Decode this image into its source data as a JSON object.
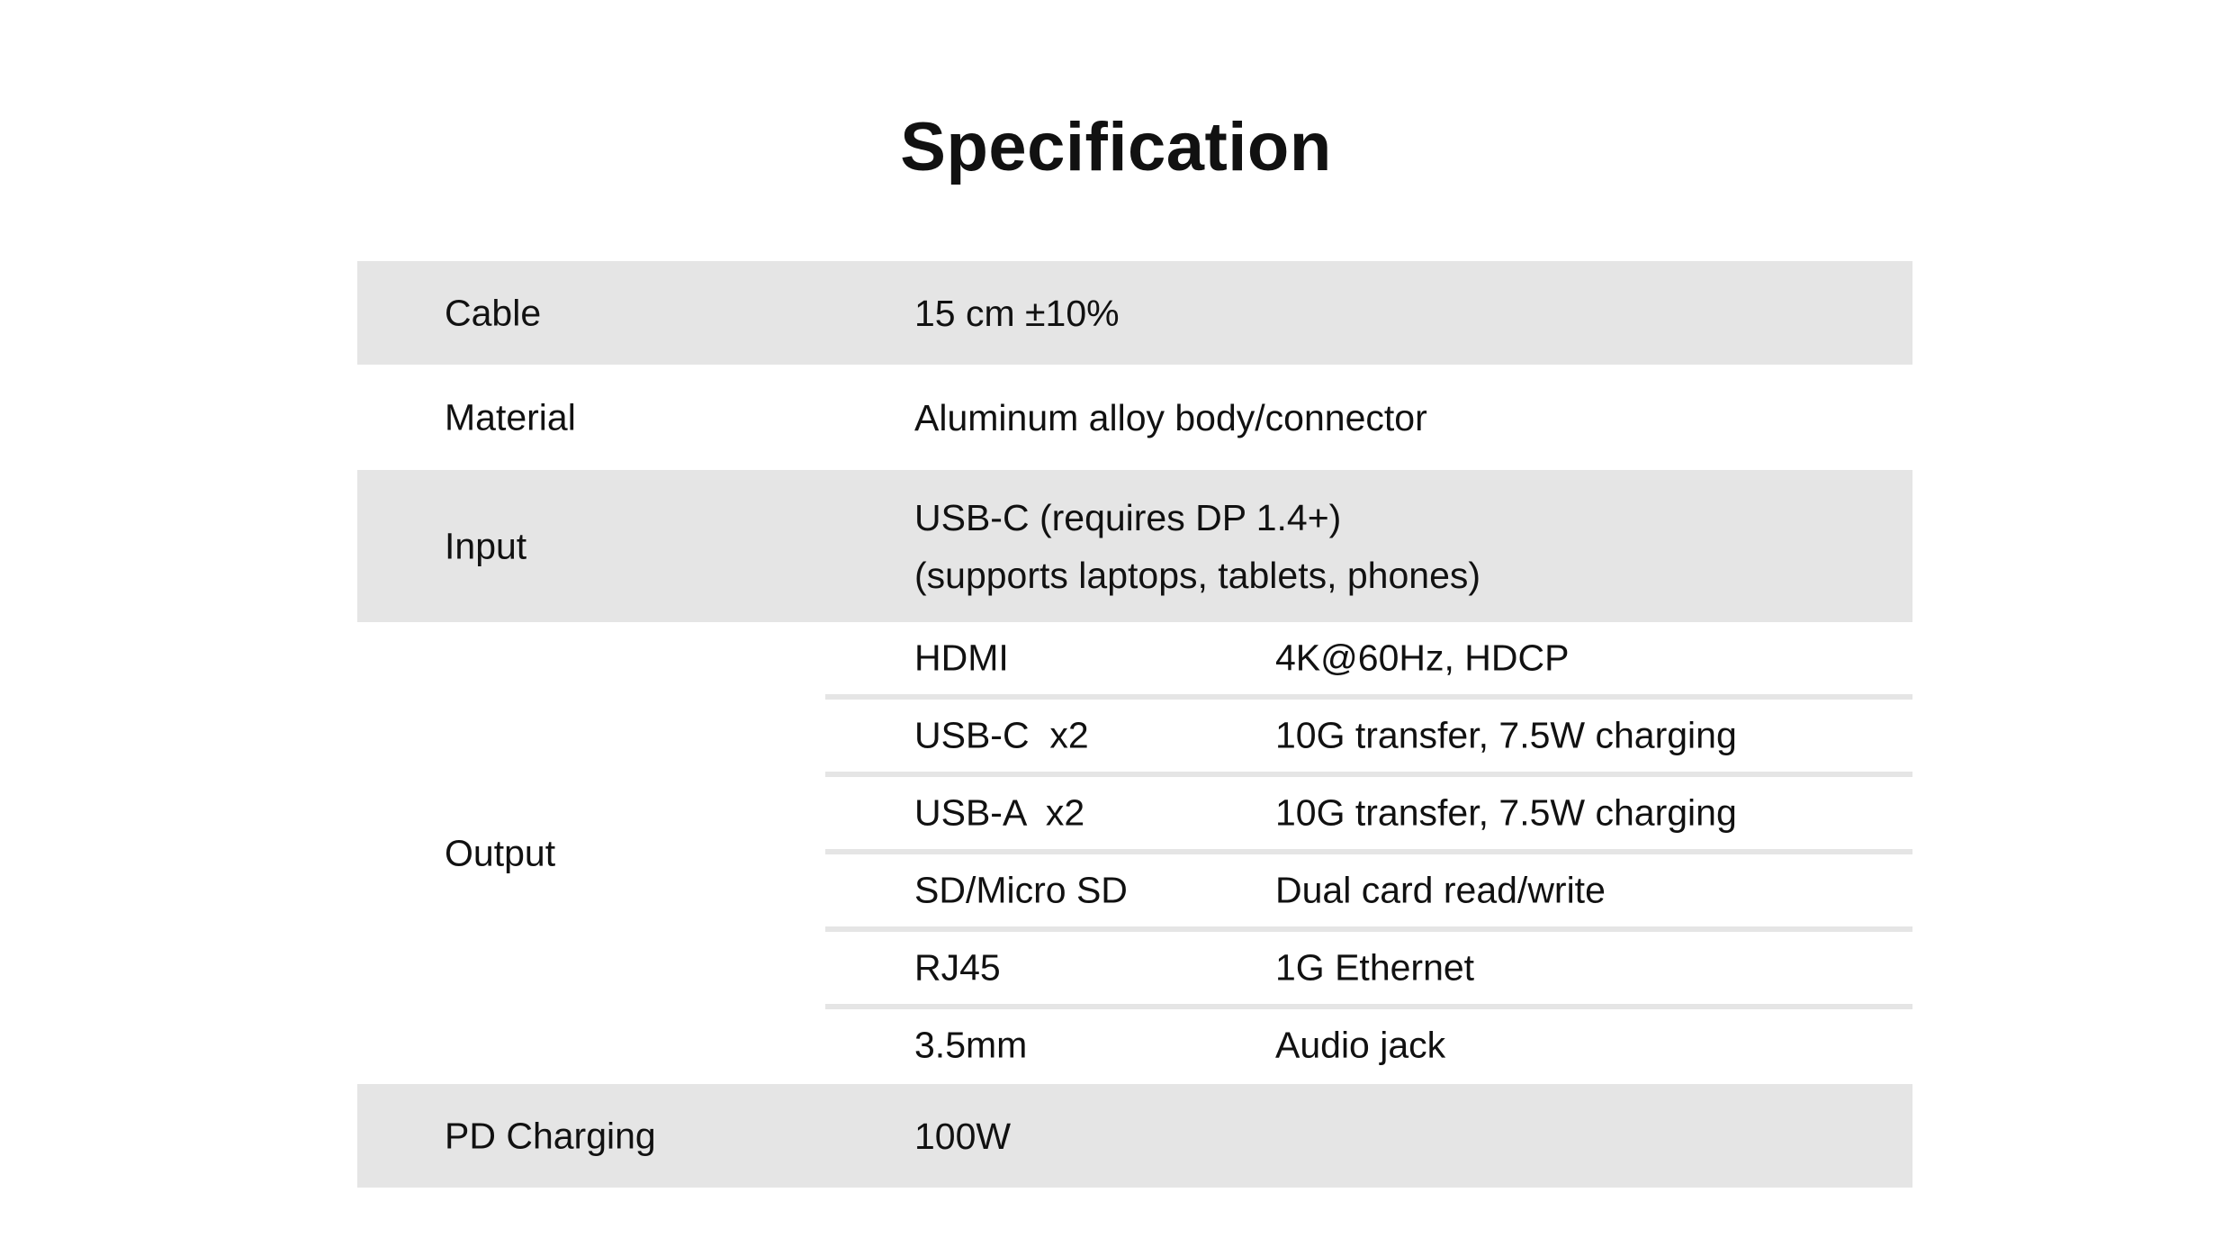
{
  "title": "Specification",
  "colors": {
    "row_shade": "#e5e5e5",
    "text": "#111111"
  },
  "rows": [
    {
      "label": "Cable",
      "value": "15 cm ±10%"
    },
    {
      "label": "Material",
      "value": "Aluminum alloy body/connector"
    },
    {
      "label": "Input",
      "value_lines": [
        "USB-C (requires DP 1.4+)",
        "(supports laptops, tablets, phones)"
      ]
    },
    {
      "label": "Output",
      "items": [
        {
          "port": "HDMI",
          "spec": "4K@60Hz, HDCP"
        },
        {
          "port": "USB-C  x2",
          "spec": "10G transfer, 7.5W charging"
        },
        {
          "port": "USB-A  x2",
          "spec": "10G transfer, 7.5W charging"
        },
        {
          "port": "SD/Micro SD",
          "spec": "Dual card read/write"
        },
        {
          "port": "RJ45",
          "spec": "1G Ethernet"
        },
        {
          "port": "3.5mm",
          "spec": "Audio jack"
        }
      ]
    },
    {
      "label": "PD Charging",
      "value": "100W"
    }
  ]
}
